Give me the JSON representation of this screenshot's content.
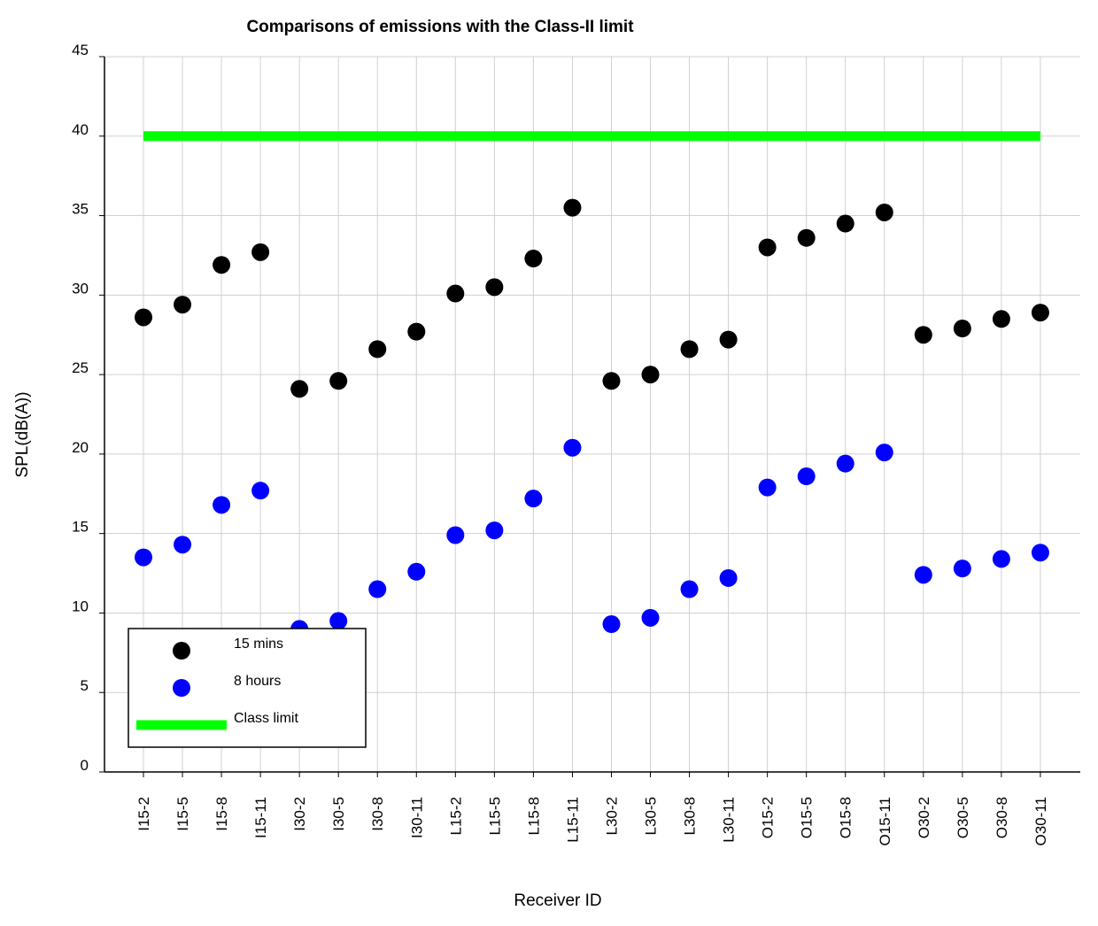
{
  "chart_data": {
    "type": "scatter",
    "title": "Comparisons of emissions with the Class-II limit",
    "xlabel": "Receiver ID",
    "ylabel": "SPL(dB(A))",
    "ylim": [
      0,
      45
    ],
    "yticks": [
      0,
      5,
      10,
      15,
      20,
      25,
      30,
      35,
      40,
      45
    ],
    "grid": true,
    "legend_position": "bottom-left",
    "categories": [
      "I15-2",
      "I15-5",
      "I15-8",
      "I15-11",
      "I30-2",
      "I30-5",
      "I30-8",
      "I30-11",
      "L15-2",
      "L15-5",
      "L15-8",
      "L15-11",
      "L30-2",
      "L30-5",
      "L30-8",
      "L30-11",
      "O15-2",
      "O15-5",
      "O15-8",
      "O15-11",
      "O30-2",
      "O30-5",
      "O30-8",
      "O30-11"
    ],
    "series": [
      {
        "name": "15 mins",
        "color": "#000000",
        "marker": "circle",
        "values": [
          28.6,
          29.4,
          31.9,
          32.7,
          24.1,
          24.6,
          26.6,
          27.7,
          30.1,
          30.5,
          32.3,
          35.5,
          24.6,
          25.0,
          26.6,
          27.2,
          33.0,
          33.6,
          34.5,
          35.2,
          27.5,
          27.9,
          28.5,
          28.9
        ]
      },
      {
        "name": "8 hours",
        "color": "#0000ff",
        "marker": "circle",
        "values": [
          13.5,
          14.3,
          16.8,
          17.7,
          9.0,
          9.5,
          11.5,
          12.6,
          14.9,
          15.2,
          17.2,
          20.4,
          9.3,
          9.7,
          11.5,
          12.2,
          17.9,
          18.6,
          19.4,
          20.1,
          12.4,
          12.8,
          13.4,
          13.8
        ]
      },
      {
        "name": "Class limit",
        "color": "#00ff00",
        "marker": "line",
        "values": [
          40,
          40,
          40,
          40,
          40,
          40,
          40,
          40,
          40,
          40,
          40,
          40,
          40,
          40,
          40,
          40,
          40,
          40,
          40,
          40,
          40,
          40,
          40,
          40
        ]
      }
    ]
  }
}
